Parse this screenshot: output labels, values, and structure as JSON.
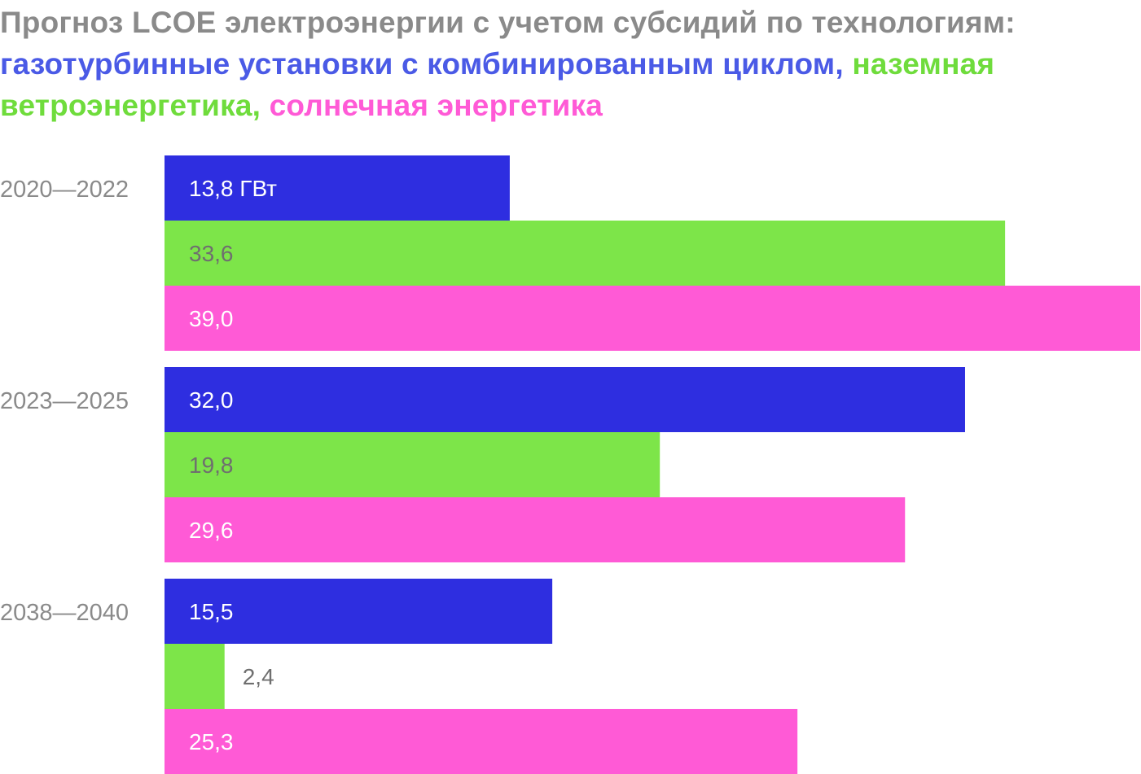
{
  "title": {
    "line_prefix": "Прогноз LCOE электроэнергии с учетом субсидий по технологиям: ",
    "gas": "газотурбинные установки с комбинированным циклом",
    "sep1": ", ",
    "wind": "наземная ветроэнергетика",
    "sep2": ", ",
    "solar": "солнечная энергетика"
  },
  "colors": {
    "title_gray": "#8a8a8a",
    "gas_title": "#4a5ae6",
    "wind_title": "#6fdc3c",
    "solar_title": "#ff5ad6",
    "gas_bar": "#2e2ee0",
    "wind_bar": "#7de549",
    "solar_bar": "#ff5ad6",
    "label_light": "#ffffff",
    "label_dark": "#6f6f6f"
  },
  "chart_data": {
    "type": "bar",
    "orientation": "horizontal",
    "categories": [
      "2020—2022",
      "2023—2025",
      "2038—2040"
    ],
    "unit": "ГВт",
    "series": [
      {
        "name": "газотурбинные установки с комбинированным циклом",
        "values": [
          13.8,
          32.0,
          15.5
        ],
        "labels": [
          "13,8 ГВт",
          "32,0",
          "15,5"
        ]
      },
      {
        "name": "наземная ветроэнергетика",
        "values": [
          33.6,
          19.8,
          2.4
        ],
        "labels": [
          "33,6",
          "19,8",
          "2,4"
        ]
      },
      {
        "name": "солнечная энергетика",
        "values": [
          39.0,
          29.6,
          25.3
        ],
        "labels": [
          "39,0",
          "29,6",
          "25,3"
        ]
      }
    ],
    "xlim": [
      0,
      39
    ],
    "grid": false,
    "legend": "in title"
  }
}
